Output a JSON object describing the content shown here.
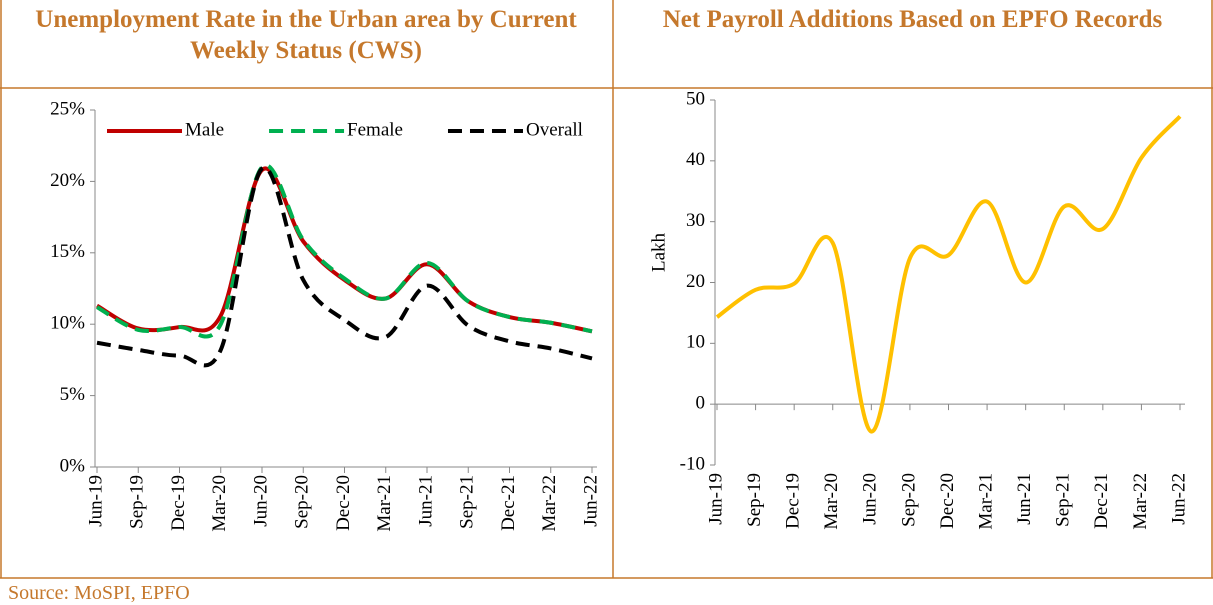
{
  "chart_data": [
    {
      "type": "line",
      "title": "Unemployment Rate in the Urban area by Current Weekly Status (CWS)",
      "categories": [
        "Jun-19",
        "Sep-19",
        "Dec-19",
        "Mar-20",
        "Jun-20",
        "Sep-20",
        "Dec-20",
        "Mar-21",
        "Jun-21",
        "Sep-21",
        "Dec-21",
        "Mar-22",
        "Jun-22"
      ],
      "series": [
        {
          "name": "Male",
          "color": "#c00000",
          "line_style": "solid",
          "values": [
            11.3,
            9.7,
            9.8,
            10.6,
            20.8,
            15.8,
            13.1,
            11.8,
            14.2,
            11.6,
            10.5,
            10.1,
            9.5
          ]
        },
        {
          "name": "Female",
          "color": "#00b050",
          "line_style": "dashed",
          "values": [
            11.2,
            9.6,
            9.8,
            10.0,
            21.0,
            15.9,
            13.2,
            11.8,
            14.3,
            11.6,
            10.5,
            10.1,
            9.5
          ]
        },
        {
          "name": "Overall",
          "color": "#000000",
          "line_style": "dashed",
          "values": [
            8.7,
            8.2,
            7.8,
            8.2,
            20.9,
            13.1,
            10.3,
            9.1,
            12.7,
            9.9,
            8.8,
            8.3,
            7.6
          ]
        }
      ],
      "ylim": [
        0,
        25
      ],
      "yticks": [
        {
          "value": 0,
          "label": "0%"
        },
        {
          "value": 5,
          "label": "5%"
        },
        {
          "value": 10,
          "label": "10%"
        },
        {
          "value": 15,
          "label": "15%"
        },
        {
          "value": 20,
          "label": "20%"
        },
        {
          "value": 25,
          "label": "25%"
        }
      ],
      "legend": "top"
    },
    {
      "type": "line",
      "title": "Net Payroll Additions Based on EPFO Records",
      "y_label": "Lakh",
      "categories": [
        "Jun-19",
        "Sep-19",
        "Dec-19",
        "Mar-20",
        "Jun-20",
        "Sep-20",
        "Dec-20",
        "Mar-21",
        "Jun-21",
        "Sep-21",
        "Dec-21",
        "Mar-22",
        "Jun-22"
      ],
      "series": [
        {
          "color": "#ffc000",
          "line_style": "solid",
          "values": [
            14.3,
            18.8,
            19.8,
            26.5,
            -4.5,
            24.0,
            24.5,
            33.3,
            20.0,
            32.5,
            28.8,
            40.5,
            47.3
          ]
        }
      ],
      "ylim": [
        -10,
        50
      ],
      "yticks": [
        -10,
        0,
        10,
        20,
        30,
        40,
        50
      ]
    }
  ],
  "source": "Source: MoSPI, EPFO"
}
